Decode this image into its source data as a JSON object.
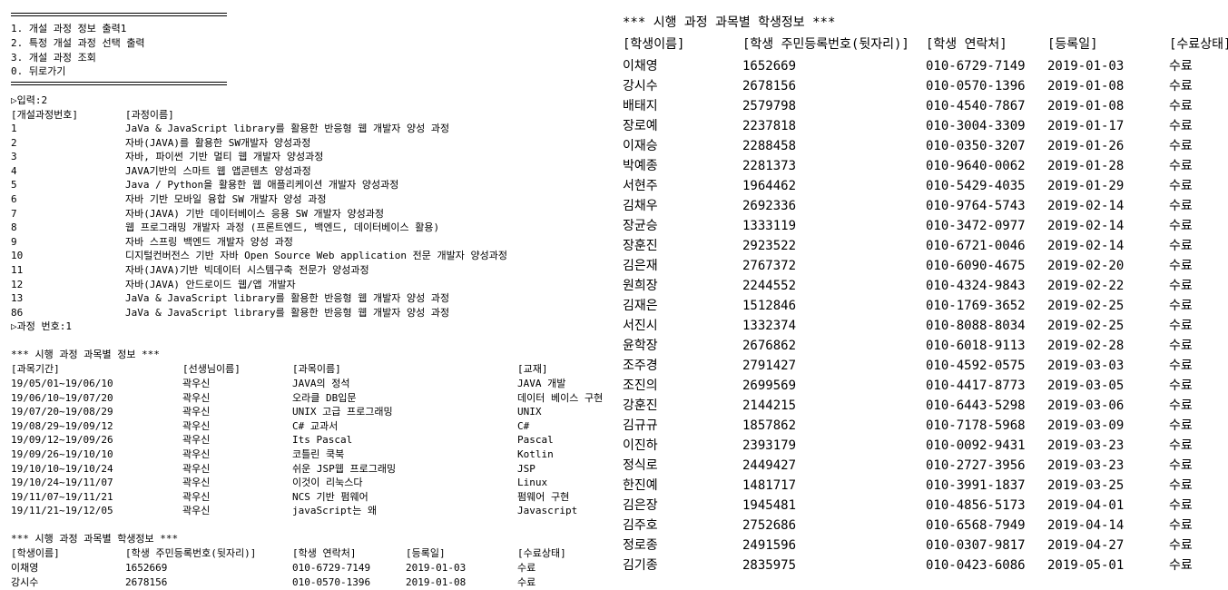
{
  "menu": {
    "items": [
      "1. 개설 과정 정보 출력1",
      "2. 특정 개설 과정 선택 출력",
      "3. 개설 과정 조회",
      "0. 뒤로가기"
    ],
    "input_prompt": "▷입력:2"
  },
  "course_list": {
    "headers": [
      "[개설과정번호]",
      "[과정이름]"
    ],
    "rows": [
      [
        "1",
        "JaVa & JavaScript library를 활용한 반응형 웹 개발자 양성 과정"
      ],
      [
        "2",
        "자바(JAVA)를 활용한 SW개발자 양성과정"
      ],
      [
        "3",
        "자바, 파이썬 기반 멀티 웹 개발자 양성과정"
      ],
      [
        "4",
        "JAVA기반의 스마트 웹 앱콘텐츠 양성과정"
      ],
      [
        "5",
        "Java / Python을 활용한 웹 애플리케이션 개발자 양성과정"
      ],
      [
        "6",
        "자바 기반 모바일 융합 SW 개발자 양성 과정"
      ],
      [
        "7",
        "자바(JAVA) 기반 데이터베이스 응용 SW 개발자 양성과정"
      ],
      [
        "8",
        "웹 프로그래밍 개발자 과정 (프론트엔드, 백엔드, 데이터베이스 활용)"
      ],
      [
        "9",
        "자바 스프링 백엔드 개발자 양성 과정"
      ],
      [
        "10",
        "디지털컨버전스 기반 자바 Open Source Web application 전문 개발자 양성과정"
      ],
      [
        "11",
        "자바(JAVA)기반 빅데이터 시스템구축 전문가 양성과정"
      ],
      [
        "12",
        "자바(JAVA) 안드로이드 웹/앱 개발자"
      ],
      [
        "13",
        "JaVa & JavaScript library를 활용한 반응형 웹 개발자 양성 과정"
      ],
      [
        "86",
        "JaVa & JavaScript library를 활용한 반응형 웹 개발자 양성 과정"
      ]
    ],
    "course_number_prompt": "▷과정 번호:1"
  },
  "subject_info": {
    "title": "*** 시행 과정 과목별 정보 ***",
    "headers": [
      "[과목기간]",
      "[선생님이름]",
      "[과목이름]",
      "[교재]"
    ],
    "rows": [
      [
        "19/05/01~19/06/10",
        "곽우신",
        "JAVA의 정석",
        "JAVA 개발"
      ],
      [
        "19/06/10~19/07/20",
        "곽우신",
        "오라클 DB입문",
        "데이터 베이스 구현"
      ],
      [
        "19/07/20~19/08/29",
        "곽우신",
        "UNIX 고급 프로그래밍",
        "UNIX"
      ],
      [
        "19/08/29~19/09/12",
        "곽우신",
        "C# 교과서",
        "C#"
      ],
      [
        "19/09/12~19/09/26",
        "곽우신",
        "Its Pascal",
        "Pascal"
      ],
      [
        "19/09/26~19/10/10",
        "곽우신",
        "코틀린 쿡북",
        "Kotlin"
      ],
      [
        "19/10/10~19/10/24",
        "곽우신",
        "쉬운 JSP웹 프로그래밍",
        "JSP"
      ],
      [
        "19/10/24~19/11/07",
        "곽우신",
        "이것이 리눅스다",
        "Linux"
      ],
      [
        "19/11/07~19/11/21",
        "곽우신",
        "NCS 기반 펌웨어",
        "펌웨어 구현"
      ],
      [
        "19/11/21~19/12/05",
        "곽우신",
        "javaScript는 왜",
        "Javascript"
      ]
    ]
  },
  "student_info": {
    "title": "*** 시행 과정 과목별 학생정보 ***",
    "headers": [
      "[학생이름]",
      "[학생 주민등록번호(뒷자리)]",
      "[학생 연락처]",
      "[등록일]",
      "[수료상태]"
    ],
    "rows": [
      [
        "이채영",
        "1652669",
        "010-6729-7149",
        "2019-01-03",
        "수료"
      ],
      [
        "강시수",
        "2678156",
        "010-0570-1396",
        "2019-01-08",
        "수료"
      ],
      [
        "배태지",
        "2579798",
        "010-4540-7867",
        "2019-01-08",
        "수료"
      ],
      [
        "장로예",
        "2237818",
        "010-3004-3309",
        "2019-01-17",
        "수료"
      ],
      [
        "이재승",
        "2288458",
        "010-0350-3207",
        "2019-01-26",
        "수료"
      ],
      [
        "박예종",
        "2281373",
        "010-9640-0062",
        "2019-01-28",
        "수료"
      ],
      [
        "서현주",
        "1964462",
        "010-5429-4035",
        "2019-01-29",
        "수료"
      ],
      [
        "김채우",
        "2692336",
        "010-9764-5743",
        "2019-02-14",
        "수료"
      ],
      [
        "장균승",
        "1333119",
        "010-3472-0977",
        "2019-02-14",
        "수료"
      ],
      [
        "장훈진",
        "2923522",
        "010-6721-0046",
        "2019-02-14",
        "수료"
      ],
      [
        "김은재",
        "2767372",
        "010-6090-4675",
        "2019-02-20",
        "수료"
      ],
      [
        "원희장",
        "2244552",
        "010-4324-9843",
        "2019-02-22",
        "수료"
      ],
      [
        "김재은",
        "1512846",
        "010-1769-3652",
        "2019-02-25",
        "수료"
      ],
      [
        "서진시",
        "1332374",
        "010-8088-8034",
        "2019-02-25",
        "수료"
      ],
      [
        "윤학장",
        "2676862",
        "010-6018-9113",
        "2019-02-28",
        "수료"
      ],
      [
        "조주경",
        "2791427",
        "010-4592-0575",
        "2019-03-03",
        "수료"
      ],
      [
        "조진의",
        "2699569",
        "010-4417-8773",
        "2019-03-05",
        "수료"
      ],
      [
        "강훈진",
        "2144215",
        "010-6443-5298",
        "2019-03-06",
        "수료"
      ],
      [
        "김규규",
        "1857862",
        "010-7178-5968",
        "2019-03-09",
        "수료"
      ],
      [
        "이진하",
        "2393179",
        "010-0092-9431",
        "2019-03-23",
        "수료"
      ],
      [
        "정식로",
        "2449427",
        "010-2727-3956",
        "2019-03-23",
        "수료"
      ],
      [
        "한진예",
        "1481717",
        "010-3991-1837",
        "2019-03-25",
        "수료"
      ],
      [
        "김은장",
        "1945481",
        "010-4856-5173",
        "2019-04-01",
        "수료"
      ],
      [
        "김주호",
        "2752686",
        "010-6568-7949",
        "2019-04-14",
        "수료"
      ],
      [
        "정로종",
        "2491596",
        "010-0307-9817",
        "2019-04-27",
        "수료"
      ],
      [
        "김기종",
        "2835975",
        "010-0423-6086",
        "2019-05-01",
        "수료"
      ]
    ]
  }
}
